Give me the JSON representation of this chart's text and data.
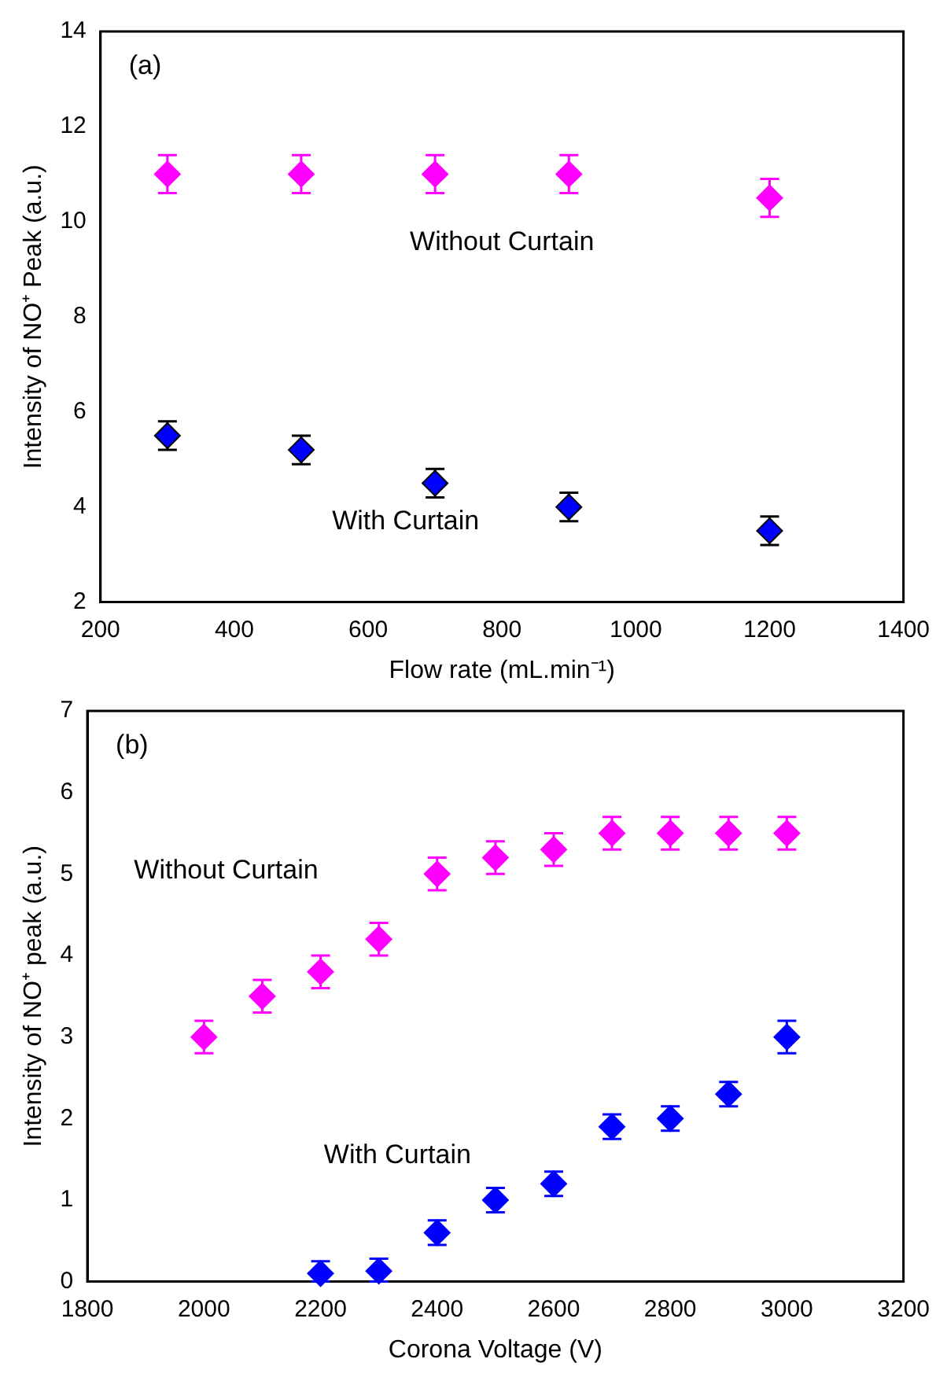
{
  "chart_data": [
    {
      "type": "scatter",
      "xlabel": "Flow rate (mL.min⁻¹)",
      "ylabel": "Intensity of NO⁺ Peak (a.u.)",
      "annotations": [
        "(a)"
      ],
      "x": [
        300,
        500,
        700,
        900,
        1200
      ],
      "xlim": [
        200,
        1400
      ],
      "xticks": [
        200,
        400,
        600,
        800,
        1000,
        1200,
        1400
      ],
      "ylim": [
        2,
        14
      ],
      "yticks": [
        2,
        4,
        6,
        8,
        10,
        12,
        14
      ],
      "grid": false,
      "legend": false,
      "marker": "diamond",
      "series": [
        {
          "name": "Without Curtain",
          "color": "#ff00ff",
          "values": [
            11,
            11,
            11,
            11,
            10.5
          ],
          "errors": [
            0.4,
            0.4,
            0.4,
            0.4,
            0.4
          ]
        },
        {
          "name": "With Curtain",
          "color": "#0000ff",
          "values": [
            5.5,
            5.2,
            4.5,
            4.0,
            3.5
          ],
          "errors": [
            0.3,
            0.3,
            0.3,
            0.3,
            0.3
          ]
        }
      ]
    },
    {
      "type": "scatter",
      "xlabel": "Corona Voltage (V)",
      "ylabel": "Intensity of NO⁺ peak (a.u.)",
      "annotations": [
        "(b)"
      ],
      "xlim": [
        1800,
        3200
      ],
      "xticks": [
        1800,
        2000,
        2200,
        2400,
        2600,
        2800,
        3000,
        3200
      ],
      "ylim": [
        0,
        7
      ],
      "yticks": [
        0,
        1,
        2,
        3,
        4,
        5,
        6,
        7
      ],
      "grid": false,
      "legend": false,
      "marker": "diamond",
      "series": [
        {
          "name": "Without Curtain",
          "color": "#ff00ff",
          "x": [
            2000,
            2100,
            2200,
            2300,
            2400,
            2500,
            2600,
            2700,
            2800,
            2900,
            3000
          ],
          "values": [
            3.0,
            3.5,
            3.8,
            4.2,
            5.0,
            5.2,
            5.3,
            5.5,
            5.5,
            5.5,
            5.5
          ],
          "errors": [
            0.2,
            0.2,
            0.2,
            0.2,
            0.2,
            0.2,
            0.2,
            0.2,
            0.2,
            0.2,
            0.2
          ]
        },
        {
          "name": "With Curtain",
          "color": "#0000ff",
          "x": [
            2200,
            2300,
            2400,
            2500,
            2600,
            2700,
            2800,
            2900,
            3000
          ],
          "values": [
            0.1,
            0.13,
            0.6,
            1.0,
            1.2,
            1.9,
            2.0,
            2.3,
            3.0
          ],
          "errors": [
            [
              0,
              0.25
            ],
            [
              0,
              0.28
            ],
            0.15,
            0.15,
            0.15,
            0.15,
            0.15,
            0.15,
            0.2
          ]
        }
      ]
    }
  ]
}
